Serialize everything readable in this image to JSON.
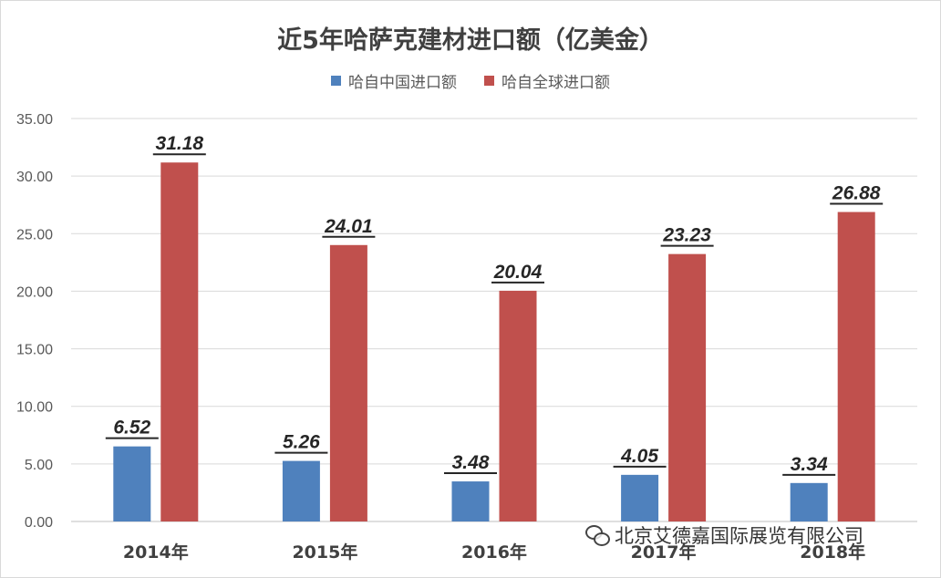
{
  "chart_data": {
    "type": "bar",
    "title": "近5年哈萨克建材进口额（亿美金）",
    "categories": [
      "2014年",
      "2015年",
      "2016年",
      "2017年",
      "2018年"
    ],
    "series": [
      {
        "name": "哈自中国进口额",
        "color": "#4f81bd",
        "values": [
          6.52,
          5.26,
          3.48,
          4.05,
          3.34
        ]
      },
      {
        "name": "哈自全球进口额",
        "color": "#c0504d",
        "values": [
          31.18,
          24.01,
          20.04,
          23.23,
          26.88
        ]
      }
    ],
    "ylim": [
      0,
      35
    ],
    "yticks": [
      "0.00",
      "5.00",
      "10.00",
      "15.00",
      "20.00",
      "25.00",
      "30.00",
      "35.00"
    ],
    "grid": true,
    "legend": "top-center"
  },
  "watermark": {
    "text": "北京艾德嘉国际展览有限公司",
    "icon": "wechat-icon"
  }
}
